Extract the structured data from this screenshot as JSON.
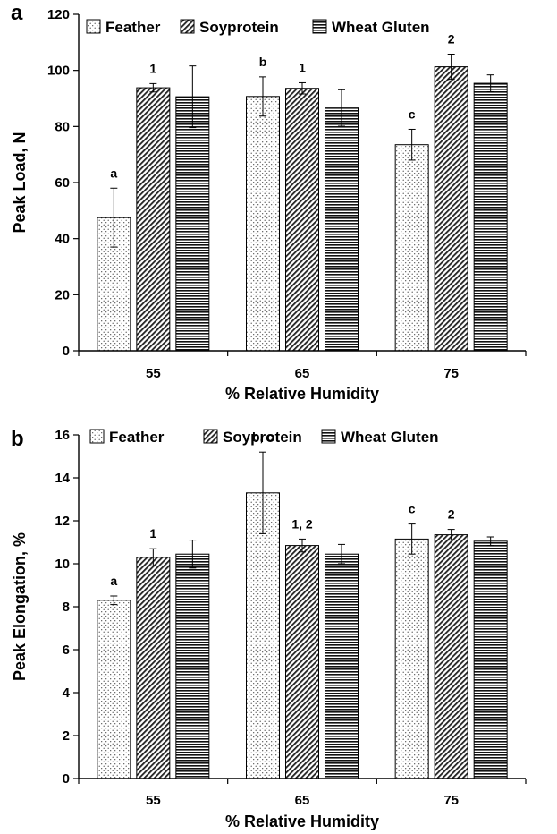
{
  "chart_data": [
    {
      "panel": "a",
      "type": "bar",
      "categories": [
        "55",
        "65",
        "75"
      ],
      "xlabel": "% Relative Humidity",
      "ylabel": "Peak Load, N",
      "ylim": [
        0,
        120
      ],
      "yticks": [
        0,
        20,
        40,
        60,
        80,
        100,
        120
      ],
      "grid": false,
      "legend_position": "top",
      "series": [
        {
          "name": "Feather",
          "pattern": "dots",
          "values": [
            47.5,
            90.7,
            73.5
          ],
          "errors": [
            10.5,
            7.0,
            5.5
          ]
        },
        {
          "name": "Soyprotein",
          "pattern": "diagonal",
          "values": [
            93.8,
            93.6,
            101.3
          ],
          "errors": [
            1.5,
            2.0,
            4.5
          ]
        },
        {
          "name": "Wheat Gluten",
          "pattern": "horizontal",
          "values": [
            90.6,
            86.6,
            95.4
          ],
          "errors": [
            11.0,
            6.5,
            3.0
          ]
        }
      ],
      "annotations": [
        {
          "text": "a",
          "category": 0,
          "series": 0
        },
        {
          "text": "1",
          "category": 0,
          "series": 1
        },
        {
          "text": "b",
          "category": 1,
          "series": 0
        },
        {
          "text": "1",
          "category": 1,
          "series": 1
        },
        {
          "text": "c",
          "category": 2,
          "series": 0
        },
        {
          "text": "2",
          "category": 2,
          "series": 1
        }
      ]
    },
    {
      "panel": "b",
      "type": "bar",
      "categories": [
        "55",
        "65",
        "75"
      ],
      "xlabel": "% Relative Humidity",
      "ylabel": "Peak Elongation, %",
      "ylim": [
        0,
        16
      ],
      "yticks": [
        0,
        2,
        4,
        6,
        8,
        10,
        12,
        14,
        16
      ],
      "grid": false,
      "legend_position": "top",
      "series": [
        {
          "name": "Feather",
          "pattern": "dots",
          "values": [
            8.3,
            13.3,
            11.15
          ],
          "errors": [
            0.2,
            1.9,
            0.7
          ]
        },
        {
          "name": "Soyprotein",
          "pattern": "diagonal",
          "values": [
            10.3,
            10.85,
            11.35
          ],
          "errors": [
            0.4,
            0.3,
            0.25
          ]
        },
        {
          "name": "Wheat Gluten",
          "pattern": "horizontal",
          "values": [
            10.45,
            10.45,
            11.05
          ],
          "errors": [
            0.65,
            0.45,
            0.2
          ]
        }
      ],
      "annotations": [
        {
          "text": "a",
          "category": 0,
          "series": 0
        },
        {
          "text": "1",
          "category": 0,
          "series": 1
        },
        {
          "text": "b, c",
          "category": 1,
          "series": 0
        },
        {
          "text": "1, 2",
          "category": 1,
          "series": 1
        },
        {
          "text": "c",
          "category": 2,
          "series": 0
        },
        {
          "text": "2",
          "category": 2,
          "series": 1
        }
      ]
    }
  ]
}
